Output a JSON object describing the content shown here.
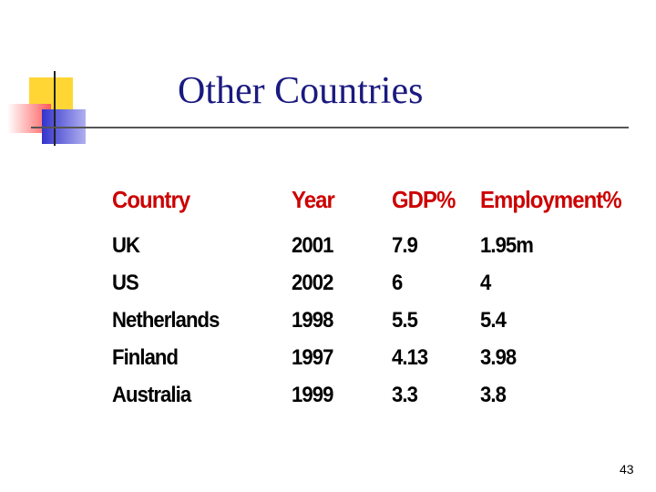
{
  "slide": {
    "title": "Other Countries",
    "table": {
      "header": [
        "Country",
        "Year",
        "GDP%",
        "Employment%"
      ],
      "rows": [
        [
          "UK",
          "2001",
          "7.9",
          "1.95m"
        ],
        [
          "US",
          "2002",
          "6",
          "4"
        ],
        [
          "Netherlands",
          "1998",
          "5.5",
          "5.4"
        ],
        [
          "Finland",
          "1997",
          "4.13",
          "3.98"
        ],
        [
          "Australia",
          "1999",
          "3.3",
          "3.8"
        ]
      ]
    },
    "page_number": "43"
  }
}
